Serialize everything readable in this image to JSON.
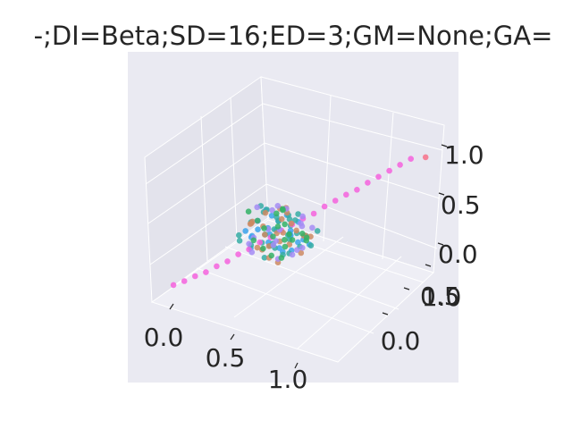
{
  "chart_data": {
    "type": "scatter",
    "projection": "3d",
    "title": "-;DI=Beta;SD=16;ED=3;GM=None;GA=",
    "xlabel": "",
    "ylabel": "",
    "zlabel": "",
    "x_ticks": [
      "0.0",
      "0.5",
      "1.0"
    ],
    "y_ticks": [
      "0.0",
      "0.5",
      "1.0"
    ],
    "z_ticks": [
      "0.0",
      "0.5",
      "1.0"
    ],
    "xlim": [
      -0.1,
      1.3
    ],
    "ylim": [
      -0.1,
      1.3
    ],
    "zlim": [
      -0.1,
      1.3
    ],
    "grid": true,
    "legend": "none",
    "colors": {
      "figure_background": "#ffffff",
      "axes_background": "#eaeaf2",
      "series": [
        "#3ba3ec",
        "#36ada4",
        "#f561dd",
        "#cc8963",
        "#a48cf4",
        "#32b166",
        "#f77189"
      ]
    },
    "series": [
      {
        "values_description": "cloud",
        "points": [
          [
            0.31,
            0.52,
            0.42
          ],
          [
            0.55,
            0.28,
            0.61
          ],
          [
            0.47,
            0.66,
            0.35
          ],
          [
            0.62,
            0.41,
            0.55
          ],
          [
            0.38,
            0.33,
            0.48
          ],
          [
            0.52,
            0.57,
            0.44
          ],
          [
            0.44,
            0.48,
            0.63
          ],
          [
            0.59,
            0.62,
            0.38
          ],
          [
            0.36,
            0.44,
            0.57
          ],
          [
            0.49,
            0.36,
            0.46
          ],
          [
            0.57,
            0.51,
            0.33
          ],
          [
            0.42,
            0.59,
            0.51
          ],
          [
            0.65,
            0.46,
            0.47
          ],
          [
            0.33,
            0.61,
            0.39
          ],
          [
            0.53,
            0.39,
            0.58
          ],
          [
            0.46,
            0.54,
            0.29
          ],
          [
            0.61,
            0.34,
            0.43
          ],
          [
            0.39,
            0.49,
            0.66
          ],
          [
            0.54,
            0.64,
            0.52
          ],
          [
            0.28,
            0.42,
            0.45
          ],
          [
            0.68,
            0.55,
            0.41
          ],
          [
            0.41,
            0.29,
            0.53
          ],
          [
            0.56,
            0.47,
            0.69
          ],
          [
            0.45,
            0.69,
            0.37
          ],
          [
            0.35,
            0.37,
            0.34
          ]
        ]
      },
      {
        "points": [
          [
            0.44,
            0.51,
            0.48
          ],
          [
            0.58,
            0.39,
            0.36
          ],
          [
            0.34,
            0.58,
            0.59
          ],
          [
            0.51,
            0.45,
            0.62
          ],
          [
            0.63,
            0.59,
            0.45
          ],
          [
            0.39,
            0.31,
            0.42
          ],
          [
            0.48,
            0.63,
            0.33
          ],
          [
            0.55,
            0.53,
            0.55
          ],
          [
            0.29,
            0.47,
            0.51
          ],
          [
            0.66,
            0.43,
            0.58
          ],
          [
            0.42,
            0.55,
            0.27
          ],
          [
            0.53,
            0.35,
            0.47
          ],
          [
            0.37,
            0.65,
            0.49
          ],
          [
            0.61,
            0.49,
            0.65
          ],
          [
            0.47,
            0.41,
            0.39
          ],
          [
            0.32,
            0.54,
            0.64
          ],
          [
            0.57,
            0.61,
            0.31
          ],
          [
            0.49,
            0.32,
            0.56
          ],
          [
            0.71,
            0.52,
            0.43
          ],
          [
            0.26,
            0.38,
            0.37
          ],
          [
            0.43,
            0.71,
            0.46
          ],
          [
            0.59,
            0.44,
            0.72
          ],
          [
            0.36,
            0.49,
            0.33
          ],
          [
            0.52,
            0.67,
            0.57
          ],
          [
            0.64,
            0.37,
            0.41
          ],
          [
            0.41,
            0.43,
            0.68
          ],
          [
            0.5,
            0.58,
            0.41
          ],
          [
            0.33,
            0.26,
            0.52
          ],
          [
            0.69,
            0.63,
            0.5
          ],
          [
            0.46,
            0.36,
            0.3
          ]
        ]
      },
      {
        "values_description": "diagonal",
        "points": [
          [
            0.0,
            0.0,
            0.05
          ],
          [
            0.05,
            0.05,
            0.08
          ],
          [
            0.1,
            0.1,
            0.12
          ],
          [
            0.15,
            0.15,
            0.15
          ],
          [
            0.2,
            0.2,
            0.2
          ],
          [
            0.25,
            0.25,
            0.24
          ],
          [
            0.3,
            0.3,
            0.3
          ],
          [
            0.35,
            0.35,
            0.34
          ],
          [
            0.4,
            0.4,
            0.4
          ],
          [
            0.45,
            0.45,
            0.44
          ],
          [
            0.5,
            0.5,
            0.5
          ],
          [
            0.55,
            0.55,
            0.55
          ],
          [
            0.6,
            0.6,
            0.6
          ],
          [
            0.65,
            0.65,
            0.64
          ],
          [
            0.7,
            0.7,
            0.7
          ],
          [
            0.75,
            0.75,
            0.75
          ],
          [
            0.8,
            0.8,
            0.8
          ],
          [
            0.85,
            0.85,
            0.84
          ],
          [
            0.9,
            0.9,
            0.9
          ],
          [
            0.95,
            0.95,
            0.95
          ],
          [
            1.0,
            1.0,
            1.0
          ],
          [
            1.05,
            1.05,
            1.05
          ],
          [
            1.1,
            1.1,
            1.1
          ]
        ]
      },
      {
        "points": [
          [
            0.4,
            0.46,
            0.44
          ],
          [
            0.56,
            0.5,
            0.39
          ],
          [
            0.33,
            0.41,
            0.55
          ],
          [
            0.5,
            0.62,
            0.5
          ],
          [
            0.6,
            0.36,
            0.6
          ],
          [
            0.45,
            0.56,
            0.34
          ],
          [
            0.38,
            0.5,
            0.62
          ],
          [
            0.63,
            0.58,
            0.46
          ],
          [
            0.48,
            0.3,
            0.42
          ],
          [
            0.54,
            0.44,
            0.66
          ],
          [
            0.3,
            0.6,
            0.4
          ],
          [
            0.66,
            0.48,
            0.36
          ],
          [
            0.43,
            0.68,
            0.54
          ],
          [
            0.58,
            0.33,
            0.32
          ],
          [
            0.36,
            0.35,
            0.59
          ],
          [
            0.51,
            0.54,
            0.7
          ],
          [
            0.62,
            0.66,
            0.4
          ],
          [
            0.27,
            0.52,
            0.48
          ],
          [
            0.47,
            0.4,
            0.28
          ],
          [
            0.7,
            0.45,
            0.56
          ],
          [
            0.39,
            0.62,
            0.36
          ],
          [
            0.55,
            0.27,
            0.5
          ],
          [
            0.44,
            0.58,
            0.64
          ],
          [
            0.35,
            0.45,
            0.3
          ],
          [
            0.6,
            0.52,
            0.53
          ]
        ]
      },
      {
        "points": [
          [
            0.5,
            0.48,
            0.52
          ],
          [
            0.37,
            0.55,
            0.43
          ],
          [
            0.62,
            0.44,
            0.35
          ],
          [
            0.45,
            0.64,
            0.61
          ],
          [
            0.54,
            0.37,
            0.49
          ],
          [
            0.31,
            0.47,
            0.37
          ],
          [
            0.67,
            0.6,
            0.54
          ],
          [
            0.42,
            0.34,
            0.65
          ],
          [
            0.58,
            0.56,
            0.31
          ],
          [
            0.35,
            0.63,
            0.56
          ],
          [
            0.49,
            0.42,
            0.4
          ],
          [
            0.64,
            0.51,
            0.62
          ],
          [
            0.4,
            0.27,
            0.46
          ],
          [
            0.53,
            0.7,
            0.44
          ],
          [
            0.28,
            0.56,
            0.6
          ],
          [
            0.6,
            0.3,
            0.38
          ],
          [
            0.46,
            0.52,
            0.71
          ],
          [
            0.72,
            0.4,
            0.48
          ],
          [
            0.34,
            0.4,
            0.28
          ],
          [
            0.56,
            0.66,
            0.57
          ]
        ]
      },
      {
        "points": [
          [
            0.43,
            0.57,
            0.47
          ],
          [
            0.59,
            0.45,
            0.53
          ],
          [
            0.36,
            0.39,
            0.41
          ],
          [
            0.52,
            0.6,
            0.36
          ],
          [
            0.47,
            0.34,
            0.6
          ],
          [
            0.65,
            0.56,
            0.43
          ],
          [
            0.32,
            0.5,
            0.52
          ],
          [
            0.55,
            0.42,
            0.3
          ],
          [
            0.41,
            0.66,
            0.58
          ],
          [
            0.6,
            0.38,
            0.67
          ],
          [
            0.38,
            0.59,
            0.34
          ],
          [
            0.5,
            0.28,
            0.45
          ],
          [
            0.69,
            0.5,
            0.51
          ],
          [
            0.29,
            0.44,
            0.63
          ],
          [
            0.57,
            0.64,
            0.42
          ],
          [
            0.45,
            0.46,
            0.26
          ],
          [
            0.35,
            0.68,
            0.5
          ],
          [
            0.63,
            0.33,
            0.56
          ],
          [
            0.48,
            0.55,
            0.66
          ],
          [
            0.54,
            0.48,
            0.37
          ]
        ]
      },
      {
        "points": [
          [
            1.18,
            1.15,
            1.12
          ]
        ]
      }
    ]
  }
}
